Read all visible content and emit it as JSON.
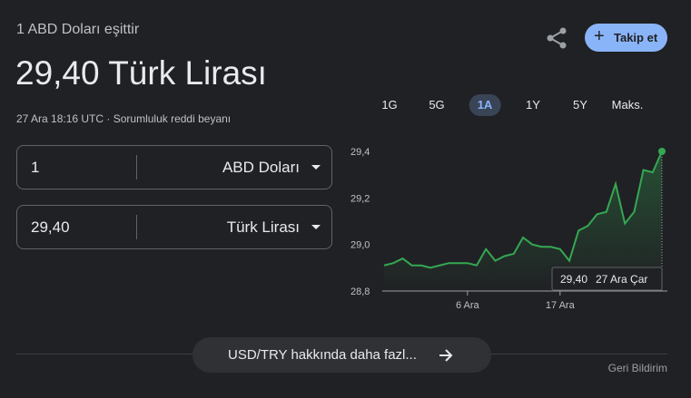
{
  "header": {
    "subtitle": "1 ABD Doları eşittir",
    "title": "29,40 Türk Lirası",
    "timestamp": "27 Ara 18:16 UTC",
    "disclaimer": "Sorumluluk reddi beyanı",
    "follow": "Takip et"
  },
  "converter": [
    {
      "amount": "1",
      "currency": "ABD Doları"
    },
    {
      "amount": "29,40",
      "currency": "Türk Lirası"
    }
  ],
  "ranges": [
    "1G",
    "5G",
    "1A",
    "1Y",
    "5Y",
    "Maks."
  ],
  "selected_range": 2,
  "chart_data": {
    "type": "line",
    "color": "#34a853",
    "categories": [
      null,
      null,
      null,
      null,
      null,
      null,
      null,
      null,
      null,
      "6 Ara",
      null,
      null,
      null,
      null,
      null,
      null,
      null,
      null,
      null,
      "17 Ara",
      null,
      null,
      null,
      null,
      null,
      null,
      null,
      null,
      null,
      null,
      null
    ],
    "values": [
      28.91,
      28.92,
      28.94,
      28.91,
      28.91,
      28.9,
      28.91,
      28.92,
      28.92,
      28.92,
      28.91,
      28.98,
      28.93,
      28.95,
      28.96,
      29.03,
      29.0,
      28.99,
      28.99,
      28.98,
      28.93,
      29.06,
      29.08,
      29.13,
      29.14,
      29.26,
      29.09,
      29.14,
      29.32,
      29.31,
      29.4
    ],
    "ylim": [
      28.8,
      29.4
    ],
    "yticks": [
      {
        "value": 28.8,
        "label": "28,8"
      },
      {
        "value": 29.0,
        "label": "29,0"
      },
      {
        "value": 29.2,
        "label": "29,2"
      },
      {
        "value": 29.4,
        "label": "29,4"
      }
    ],
    "tooltip": {
      "value_label": "29,40",
      "date": "27 Ara Çar"
    }
  },
  "footer": {
    "more": "USD/TRY hakkında daha fazl...",
    "feedback": "Geri Bildirim"
  }
}
